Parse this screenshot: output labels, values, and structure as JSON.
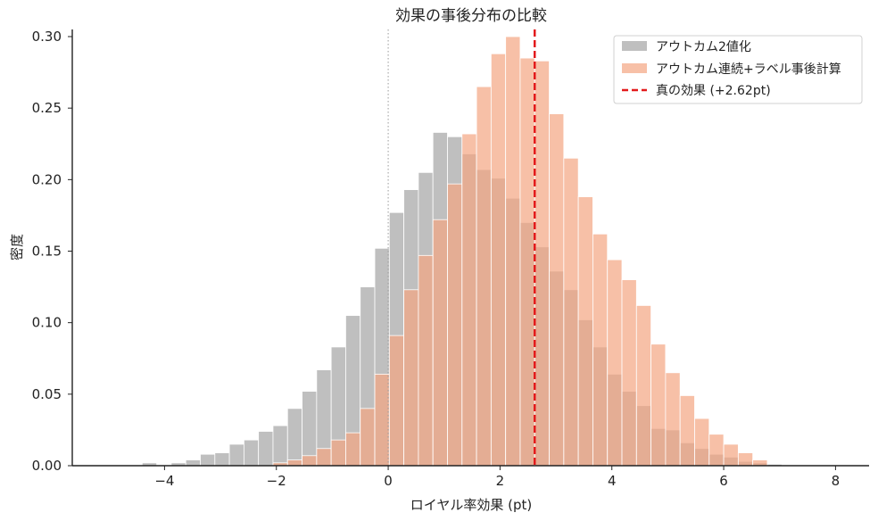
{
  "chart_data": {
    "type": "histogram",
    "title": "効果の事後分布の比較",
    "xlabel": "ロイヤル率効果 (pt)",
    "ylabel": "密度",
    "xlim": [
      -5.65,
      8.6
    ],
    "ylim": [
      0,
      0.305
    ],
    "xticks": [
      -4,
      -2,
      0,
      2,
      4,
      6,
      8
    ],
    "xtick_labels": [
      "−4",
      "−2",
      "0",
      "2",
      "4",
      "6",
      "8"
    ],
    "yticks": [
      0.0,
      0.05,
      0.1,
      0.15,
      0.2,
      0.25,
      0.3
    ],
    "ytick_labels": [
      "0.00",
      "0.05",
      "0.10",
      "0.15",
      "0.20",
      "0.25",
      "0.30"
    ],
    "grid": false,
    "legend_position": "top-right",
    "series": [
      {
        "name": "アウトカム2値化",
        "color": "#a9a9a9",
        "bins_left": [
          -4.4,
          -4.14,
          -3.88,
          -3.62,
          -3.36,
          -3.1,
          -2.84,
          -2.58,
          -2.32,
          -2.06,
          -1.8,
          -1.54,
          -1.28,
          -1.02,
          -0.76,
          -0.5,
          -0.24,
          0.02,
          0.28,
          0.54,
          0.8,
          1.06,
          1.32,
          1.58,
          1.84,
          2.1,
          2.36,
          2.62,
          2.88,
          3.14,
          3.4,
          3.66,
          3.92,
          4.18,
          4.44,
          4.7,
          4.96,
          5.22,
          5.48,
          5.74,
          6.0,
          6.26,
          6.52,
          6.78
        ],
        "bin_width": 0.26,
        "values": [
          0.002,
          0.0,
          0.002,
          0.004,
          0.008,
          0.009,
          0.015,
          0.018,
          0.024,
          0.028,
          0.04,
          0.052,
          0.067,
          0.083,
          0.105,
          0.125,
          0.152,
          0.177,
          0.193,
          0.205,
          0.233,
          0.23,
          0.218,
          0.207,
          0.201,
          0.187,
          0.17,
          0.153,
          0.136,
          0.123,
          0.102,
          0.083,
          0.064,
          0.052,
          0.042,
          0.026,
          0.025,
          0.016,
          0.012,
          0.008,
          0.006,
          0.003,
          0.002,
          0.001
        ]
      },
      {
        "name": "アウトカム連続+ラベル事後計算",
        "color": "#f4a582",
        "bins_left": [
          -2.06,
          -1.8,
          -1.54,
          -1.28,
          -1.02,
          -0.76,
          -0.5,
          -0.24,
          0.02,
          0.28,
          0.54,
          0.8,
          1.06,
          1.32,
          1.58,
          1.84,
          2.1,
          2.36,
          2.62,
          2.88,
          3.14,
          3.4,
          3.66,
          3.92,
          4.18,
          4.44,
          4.7,
          4.96,
          5.22,
          5.48,
          5.74,
          6.0,
          6.26,
          6.52
        ],
        "bin_width": 0.26,
        "values": [
          0.002,
          0.004,
          0.007,
          0.012,
          0.018,
          0.023,
          0.04,
          0.064,
          0.091,
          0.123,
          0.147,
          0.172,
          0.197,
          0.232,
          0.265,
          0.288,
          0.3,
          0.285,
          0.283,
          0.246,
          0.215,
          0.188,
          0.162,
          0.144,
          0.13,
          0.112,
          0.085,
          0.065,
          0.049,
          0.033,
          0.022,
          0.015,
          0.009,
          0.004
        ]
      }
    ],
    "reference_line": {
      "name": "真の効果 (+2.62pt)",
      "x": 2.62,
      "color": "#e31a1c",
      "style": "dashed"
    },
    "zero_line": {
      "x": 0
    }
  }
}
